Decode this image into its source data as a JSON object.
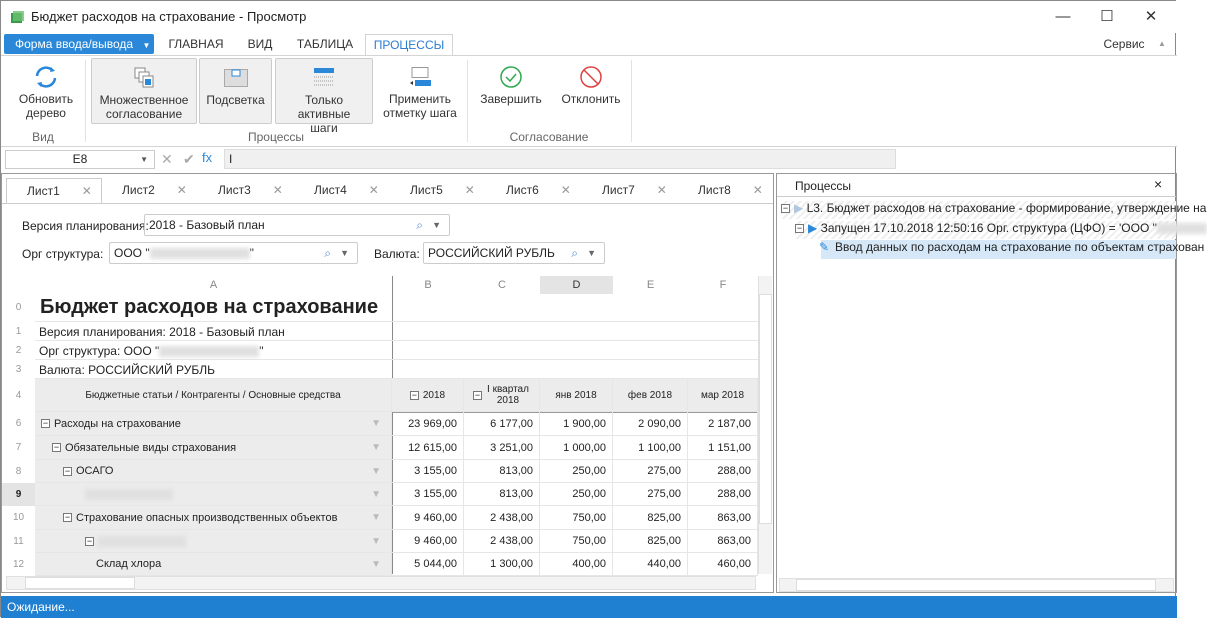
{
  "window": {
    "title": "Бюджет расходов на страхование - Просмотр",
    "minimize": "—",
    "maximize": "☐",
    "close": "✕"
  },
  "ribbon": {
    "form_button": "Форма ввода/вывода",
    "tabs": [
      "ГЛАВНАЯ",
      "ВИД",
      "ТАБЛИЦА",
      "ПРОЦЕССЫ"
    ],
    "active_tab": "ПРОЦЕССЫ",
    "service": "Сервис",
    "buttons": {
      "refresh": "Обновить дерево",
      "multi": "Множественное согласование",
      "highlight": "Подсветка",
      "active_only": "Только активные шаги",
      "apply_mark": "Применить отметку шага",
      "finish": "Завершить",
      "reject": "Отклонить"
    },
    "groups": {
      "view": "Вид",
      "processes": "Процессы",
      "approval": "Согласование"
    }
  },
  "formula": {
    "cell": "E8",
    "value": "I"
  },
  "sheets": [
    "Лист1",
    "Лист2",
    "Лист3",
    "Лист4",
    "Лист5",
    "Лист6",
    "Лист7",
    "Лист8"
  ],
  "filters": {
    "version_label": "Версия планирования:",
    "version_value": "2018 - Базовый план",
    "org_label": "Орг структура:",
    "org_value": "ООО \"",
    "org_suffix": "\"",
    "currency_label": "Валюта:",
    "currency_value": "РОССИЙСКИЙ РУБЛЬ"
  },
  "grid": {
    "columns": [
      "A",
      "B",
      "C",
      "D",
      "E",
      "F"
    ],
    "selected_column": "D",
    "title": "Бюджет расходов на страхование",
    "info": [
      "Версия планирования: 2018 - Базовый план",
      "Орг структура: ООО \"",
      "Валюта: РОССИЙСКИЙ РУБЛЬ"
    ],
    "info_rownums": [
      "0",
      "1",
      "2",
      "3"
    ],
    "header_rownum": "4",
    "header": [
      "Бюджетные статьи / Контрагенты / Основные средства",
      "2018",
      "I квартал 2018",
      "янв 2018",
      "фев 2018",
      "мар 2018"
    ],
    "rows": [
      {
        "n": "6",
        "label": "Расходы на страхование",
        "level": 0,
        "toggle": true,
        "values": [
          "23 969,00",
          "6 177,00",
          "1 900,00",
          "2 090,00",
          "2 187,00"
        ]
      },
      {
        "n": "7",
        "label": "Обязательные виды страхования",
        "level": 1,
        "toggle": true,
        "values": [
          "12 615,00",
          "3 251,00",
          "1 000,00",
          "1 100,00",
          "1 151,00"
        ]
      },
      {
        "n": "8",
        "label": "ОСАГО",
        "level": 2,
        "toggle": true,
        "values": [
          "3 155,00",
          "813,00",
          "250,00",
          "275,00",
          "288,00"
        ]
      },
      {
        "n": "9",
        "label": "",
        "level": 4,
        "toggle": false,
        "blur": true,
        "values": [
          "3 155,00",
          "813,00",
          "250,00",
          "275,00",
          "288,00"
        ]
      },
      {
        "n": "10",
        "label": "Страхование опасных производственных объектов",
        "level": 2,
        "toggle": true,
        "values": [
          "9 460,00",
          "2 438,00",
          "750,00",
          "825,00",
          "863,00"
        ]
      },
      {
        "n": "11",
        "label": "",
        "level": 4,
        "toggle": true,
        "blur": true,
        "values": [
          "9 460,00",
          "2 438,00",
          "750,00",
          "825,00",
          "863,00"
        ]
      },
      {
        "n": "12",
        "label": "Склад хлора",
        "level": 5,
        "toggle": false,
        "values": [
          "5 044,00",
          "1 300,00",
          "400,00",
          "440,00",
          "460,00"
        ]
      }
    ],
    "selected_row": "9"
  },
  "processes": {
    "title": "Процессы",
    "close": "×",
    "items": [
      "L3. Бюджет расходов на страхование - формирование, утверждение на",
      "Запущен 17.10.2018 12:50:16 Орг. структура (ЦФО) = 'ООО \"",
      "Ввод данных по расходам на страхование по объектам страхован"
    ]
  },
  "status": "Ожидание...",
  "colors": {
    "accent": "#2b88d8",
    "status_bar": "#1f7fd1",
    "ok": "#2fa84f",
    "reject": "#e04040"
  }
}
